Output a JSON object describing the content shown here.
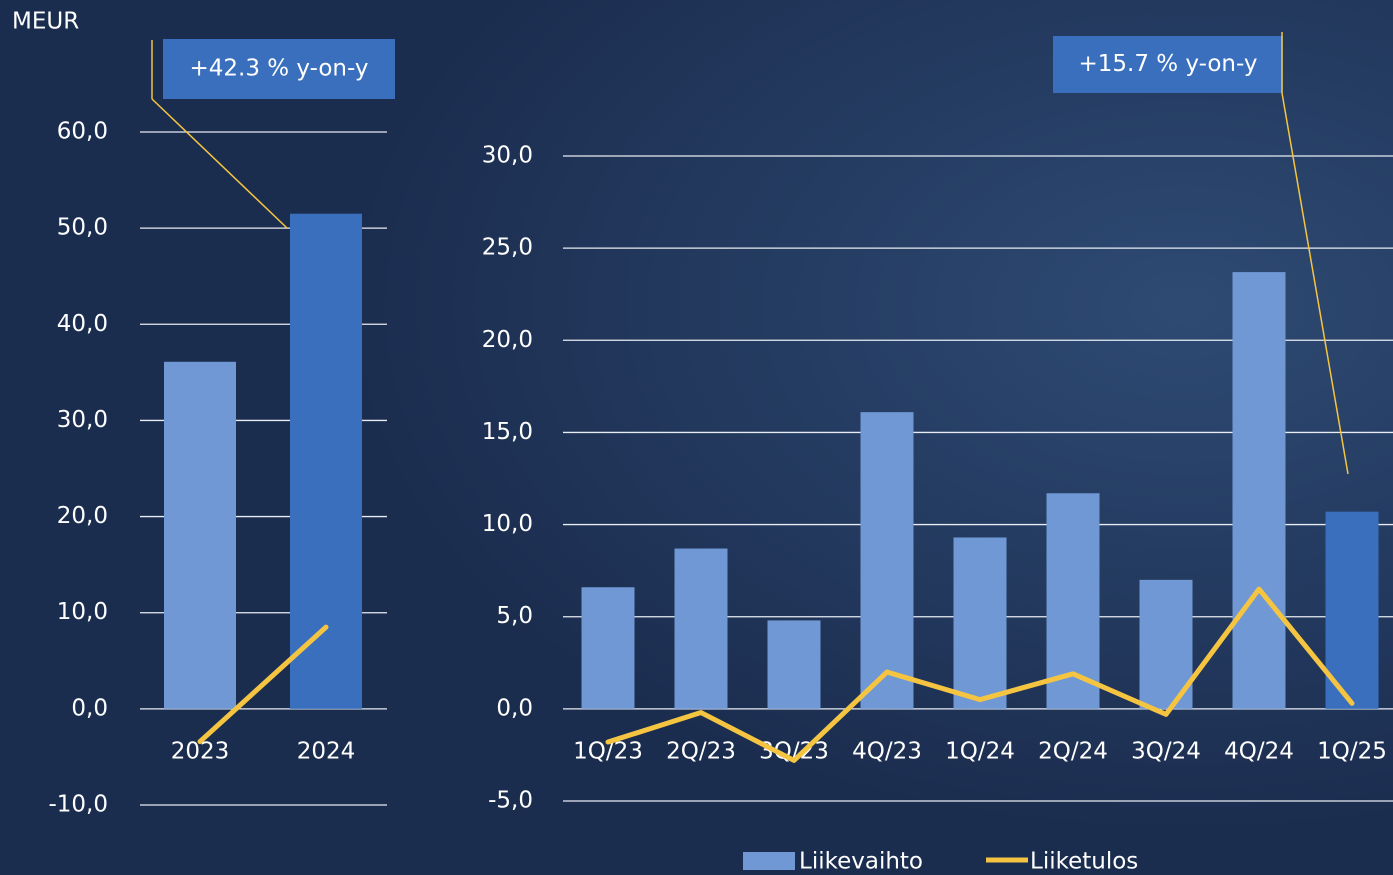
{
  "chart_data": [
    {
      "type": "bar",
      "y_label": "MEUR",
      "annotation": "+42.3 % y-on-y",
      "categories": [
        "2023",
        "2024"
      ],
      "series": [
        {
          "type": "bar",
          "colors": [
            "#6f98d4",
            "#3a6fbd"
          ],
          "values": [
            36.1,
            51.5
          ]
        },
        {
          "type": "line",
          "color": "#f5c542",
          "values": [
            -3.4,
            8.5
          ]
        }
      ],
      "ylim": [
        -10,
        60
      ],
      "yticks": [
        {
          "value": -10,
          "label": "-10,0"
        },
        {
          "value": 0,
          "label": "0,0"
        },
        {
          "value": 10,
          "label": "10,0"
        },
        {
          "value": 20,
          "label": "20,0"
        },
        {
          "value": 30,
          "label": "30,0"
        },
        {
          "value": 40,
          "label": "40,0"
        },
        {
          "value": 50,
          "label": "50,0"
        },
        {
          "value": 60,
          "label": "60,0"
        }
      ],
      "grid": true
    },
    {
      "type": "bar",
      "annotation": "+15.7 % y-on-y",
      "categories": [
        "1Q/23",
        "2Q/23",
        "3Q/23",
        "4Q/23",
        "1Q/24",
        "2Q/24",
        "3Q/24",
        "4Q/24",
        "1Q/25"
      ],
      "series": [
        {
          "type": "bar",
          "name": "Liikevaihto",
          "color": "#6f98d4",
          "colors": [
            "#6f98d4",
            "#6f98d4",
            "#6f98d4",
            "#6f98d4",
            "#6f98d4",
            "#6f98d4",
            "#6f98d4",
            "#6f98d4",
            "#3a6fbd"
          ],
          "values": [
            6.6,
            8.7,
            4.8,
            16.1,
            9.3,
            11.7,
            7.0,
            23.7,
            10.7
          ]
        },
        {
          "type": "line",
          "name": "Liiketulos",
          "color": "#f5c542",
          "values": [
            -1.8,
            -0.2,
            -2.8,
            2.0,
            0.5,
            1.9,
            -0.3,
            6.5,
            0.3
          ]
        }
      ],
      "ylim": [
        -5,
        30
      ],
      "yticks": [
        {
          "value": -5,
          "label": "-5,0"
        },
        {
          "value": 0,
          "label": "0,0"
        },
        {
          "value": 5,
          "label": "5,0"
        },
        {
          "value": 10,
          "label": "10,0"
        },
        {
          "value": 15,
          "label": "15,0"
        },
        {
          "value": 20,
          "label": "20,0"
        },
        {
          "value": 25,
          "label": "25,0"
        },
        {
          "value": 30,
          "label": "30,0"
        }
      ],
      "grid": true
    }
  ]
}
